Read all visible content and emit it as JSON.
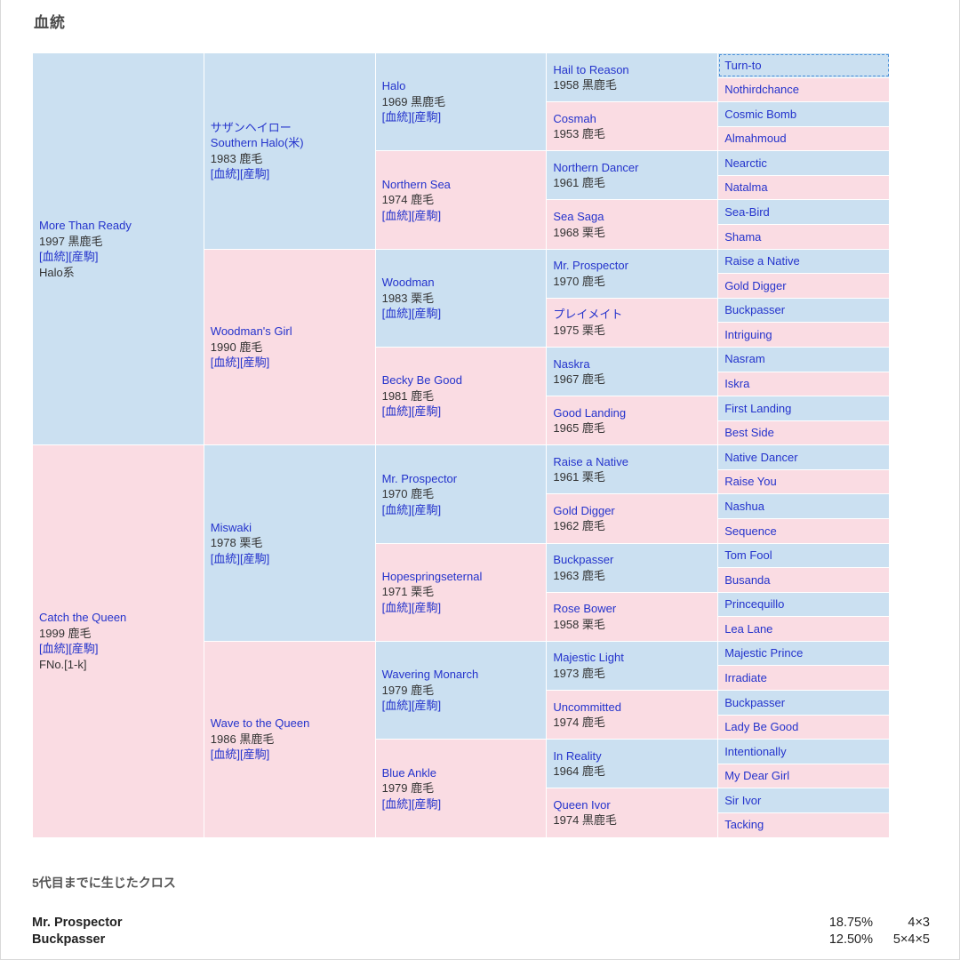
{
  "page": {
    "title": "血統"
  },
  "colors": {
    "male_bg": "#cbe0f1",
    "female_bg": "#fadce3",
    "link": "#2433cc"
  },
  "pedigree": {
    "link_labels": [
      "血統",
      "産駒"
    ],
    "generations": [
      [
        {
          "name": "More Than Ready",
          "info": "1997 黒鹿毛",
          "links": true,
          "extra": "Halo系",
          "sex": "m"
        },
        {
          "name": "Catch the Queen",
          "info": "1999 鹿毛",
          "links": true,
          "extra": "FNo.[1-k]",
          "sex": "f"
        }
      ],
      [
        {
          "name": "サザンヘイロー",
          "name2": "Southern Halo(米)",
          "info": "1983 鹿毛",
          "links": true,
          "sex": "m"
        },
        {
          "name": "Woodman's Girl",
          "info": "1990 鹿毛",
          "links": true,
          "sex": "f"
        },
        {
          "name": "Miswaki",
          "info": "1978 栗毛",
          "links": true,
          "sex": "m"
        },
        {
          "name": "Wave to the Queen",
          "info": "1986 黒鹿毛",
          "links": true,
          "sex": "f"
        }
      ],
      [
        {
          "name": "Halo",
          "info": "1969 黒鹿毛",
          "links": true,
          "sex": "m"
        },
        {
          "name": "Northern Sea",
          "info": "1974 鹿毛",
          "links": true,
          "sex": "f"
        },
        {
          "name": "Woodman",
          "info": "1983 栗毛",
          "links": true,
          "sex": "m"
        },
        {
          "name": "Becky Be Good",
          "info": "1981 鹿毛",
          "links": true,
          "sex": "f"
        },
        {
          "name": "Mr. Prospector",
          "info": "1970 鹿毛",
          "links": true,
          "sex": "m"
        },
        {
          "name": "Hopespringseternal",
          "info": "1971 栗毛",
          "links": true,
          "sex": "f"
        },
        {
          "name": "Wavering Monarch",
          "info": "1979 鹿毛",
          "links": true,
          "sex": "m"
        },
        {
          "name": "Blue Ankle",
          "info": "1979 鹿毛",
          "links": true,
          "sex": "f"
        }
      ],
      [
        {
          "name": "Hail to Reason",
          "info": "1958 黒鹿毛",
          "sex": "m"
        },
        {
          "name": "Cosmah",
          "info": "1953 鹿毛",
          "sex": "f"
        },
        {
          "name": "Northern Dancer",
          "info": "1961 鹿毛",
          "sex": "m"
        },
        {
          "name": "Sea Saga",
          "info": "1968 栗毛",
          "sex": "f"
        },
        {
          "name": "Mr. Prospector",
          "info": "1970 鹿毛",
          "sex": "m"
        },
        {
          "name": "プレイメイト",
          "info": "1975 栗毛",
          "sex": "f"
        },
        {
          "name": "Naskra",
          "info": "1967 鹿毛",
          "sex": "m"
        },
        {
          "name": "Good Landing",
          "info": "1965 鹿毛",
          "sex": "f"
        },
        {
          "name": "Raise a Native",
          "info": "1961 栗毛",
          "sex": "m"
        },
        {
          "name": "Gold Digger",
          "info": "1962 鹿毛",
          "sex": "f"
        },
        {
          "name": "Buckpasser",
          "info": "1963 鹿毛",
          "sex": "m"
        },
        {
          "name": "Rose Bower",
          "info": "1958 栗毛",
          "sex": "f"
        },
        {
          "name": "Majestic Light",
          "info": "1973 鹿毛",
          "sex": "m"
        },
        {
          "name": "Uncommitted",
          "info": "1974 鹿毛",
          "sex": "f"
        },
        {
          "name": "In Reality",
          "info": "1964 鹿毛",
          "sex": "m"
        },
        {
          "name": "Queen Ivor",
          "info": "1974 黒鹿毛",
          "sex": "f"
        }
      ],
      [
        {
          "name": "Turn-to",
          "sex": "m"
        },
        {
          "name": "Nothirdchance",
          "sex": "f"
        },
        {
          "name": "Cosmic Bomb",
          "sex": "m"
        },
        {
          "name": "Almahmoud",
          "sex": "f"
        },
        {
          "name": "Nearctic",
          "sex": "m"
        },
        {
          "name": "Natalma",
          "sex": "f"
        },
        {
          "name": "Sea-Bird",
          "sex": "m"
        },
        {
          "name": "Shama",
          "sex": "f"
        },
        {
          "name": "Raise a Native",
          "sex": "m"
        },
        {
          "name": "Gold Digger",
          "sex": "f"
        },
        {
          "name": "Buckpasser",
          "sex": "m"
        },
        {
          "name": "Intriguing",
          "sex": "f"
        },
        {
          "name": "Nasram",
          "sex": "m"
        },
        {
          "name": "Iskra",
          "sex": "f"
        },
        {
          "name": "First Landing",
          "sex": "m"
        },
        {
          "name": "Best Side",
          "sex": "f"
        },
        {
          "name": "Native Dancer",
          "sex": "m"
        },
        {
          "name": "Raise You",
          "sex": "f"
        },
        {
          "name": "Nashua",
          "sex": "m"
        },
        {
          "name": "Sequence",
          "sex": "f"
        },
        {
          "name": "Tom Fool",
          "sex": "m"
        },
        {
          "name": "Busanda",
          "sex": "f"
        },
        {
          "name": "Princequillo",
          "sex": "m"
        },
        {
          "name": "Lea Lane",
          "sex": "f"
        },
        {
          "name": "Majestic Prince",
          "sex": "m"
        },
        {
          "name": "Irradiate",
          "sex": "f"
        },
        {
          "name": "Buckpasser",
          "sex": "m"
        },
        {
          "name": "Lady Be Good",
          "sex": "f"
        },
        {
          "name": "Intentionally",
          "sex": "m"
        },
        {
          "name": "My Dear Girl",
          "sex": "f"
        },
        {
          "name": "Sir Ivor",
          "sex": "m"
        },
        {
          "name": "Tacking",
          "sex": "f"
        }
      ]
    ]
  },
  "crosses": {
    "title": "5代目までに生じたクロス",
    "rows": [
      {
        "name": "Mr. Prospector",
        "percent": "18.75%",
        "pattern": "4×3"
      },
      {
        "name": "Buckpasser",
        "percent": "12.50%",
        "pattern": "5×4×5"
      }
    ]
  }
}
